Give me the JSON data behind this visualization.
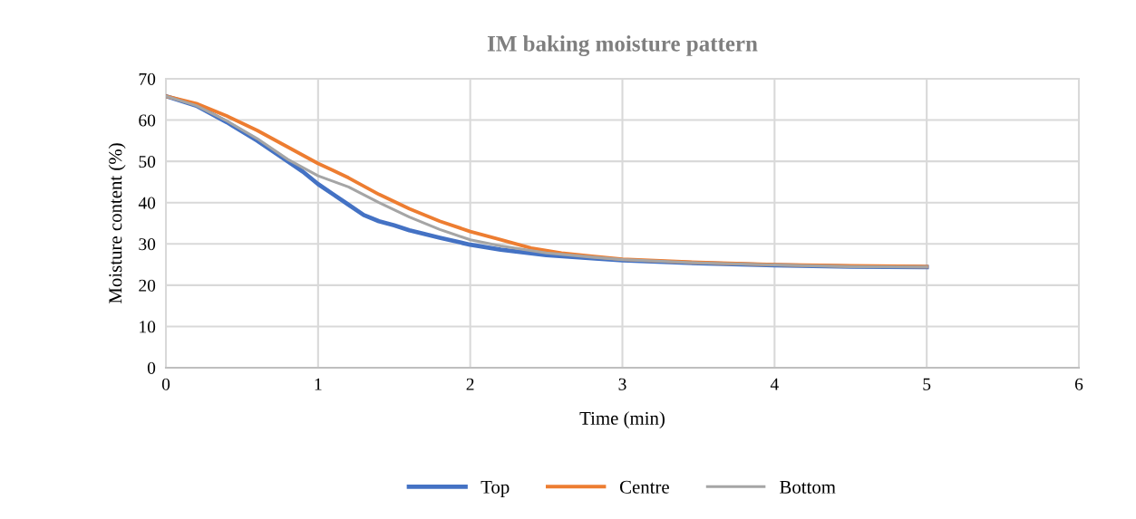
{
  "chart_data": {
    "type": "line",
    "title": "IM baking moisture pattern",
    "xlabel": "Time (min)",
    "ylabel": "Moisture content (%)",
    "xlim": [
      0,
      6
    ],
    "xticks": [
      0,
      1,
      2,
      3,
      4,
      5,
      6
    ],
    "ylim": [
      0,
      70
    ],
    "yticks": [
      0,
      10,
      20,
      30,
      40,
      50,
      60,
      70
    ],
    "grid": true,
    "legend": "bottom",
    "marker": "none",
    "line_style": "solid",
    "series": [
      {
        "name": "Top",
        "color": "#4472c4",
        "x": [
          0,
          0.2,
          0.4,
          0.6,
          0.8,
          0.9,
          1.0,
          1.1,
          1.2,
          1.3,
          1.4,
          1.5,
          1.6,
          1.8,
          2.0,
          2.2,
          2.5,
          2.8,
          3.0,
          3.5,
          4.0,
          4.5,
          5.0
        ],
        "values": [
          65.8,
          63.5,
          59.5,
          55,
          50,
          47.5,
          44.5,
          42,
          39.5,
          37,
          35.5,
          34.5,
          33.3,
          31.5,
          29.8,
          28.6,
          27.3,
          26.5,
          26,
          25.3,
          24.8,
          24.5,
          24.4
        ]
      },
      {
        "name": "Centre",
        "color": "#ed7d31",
        "x": [
          0,
          0.2,
          0.4,
          0.6,
          0.8,
          1.0,
          1.1,
          1.2,
          1.4,
          1.6,
          1.8,
          2.0,
          2.2,
          2.4,
          2.6,
          2.8,
          3.0,
          3.5,
          4.0,
          4.5,
          5.0
        ],
        "values": [
          65.8,
          64,
          61,
          57.5,
          53.5,
          49.5,
          47.8,
          46,
          42,
          38.5,
          35.5,
          33,
          31,
          29,
          27.8,
          27,
          26.3,
          25.5,
          25,
          24.7,
          24.5
        ]
      },
      {
        "name": "Bottom",
        "color": "#a5a5a5",
        "x": [
          0,
          0.2,
          0.4,
          0.6,
          0.8,
          1.0,
          1.2,
          1.4,
          1.6,
          1.8,
          2.0,
          2.2,
          2.5,
          2.8,
          3.0,
          3.5,
          4.0,
          4.5,
          5.0
        ],
        "values": [
          65.8,
          63.5,
          59.8,
          55.5,
          50.5,
          46.5,
          43.8,
          40,
          36.5,
          33.5,
          31,
          29.5,
          27.8,
          26.8,
          26.2,
          25.4,
          24.9,
          24.5,
          24.4
        ]
      }
    ]
  }
}
